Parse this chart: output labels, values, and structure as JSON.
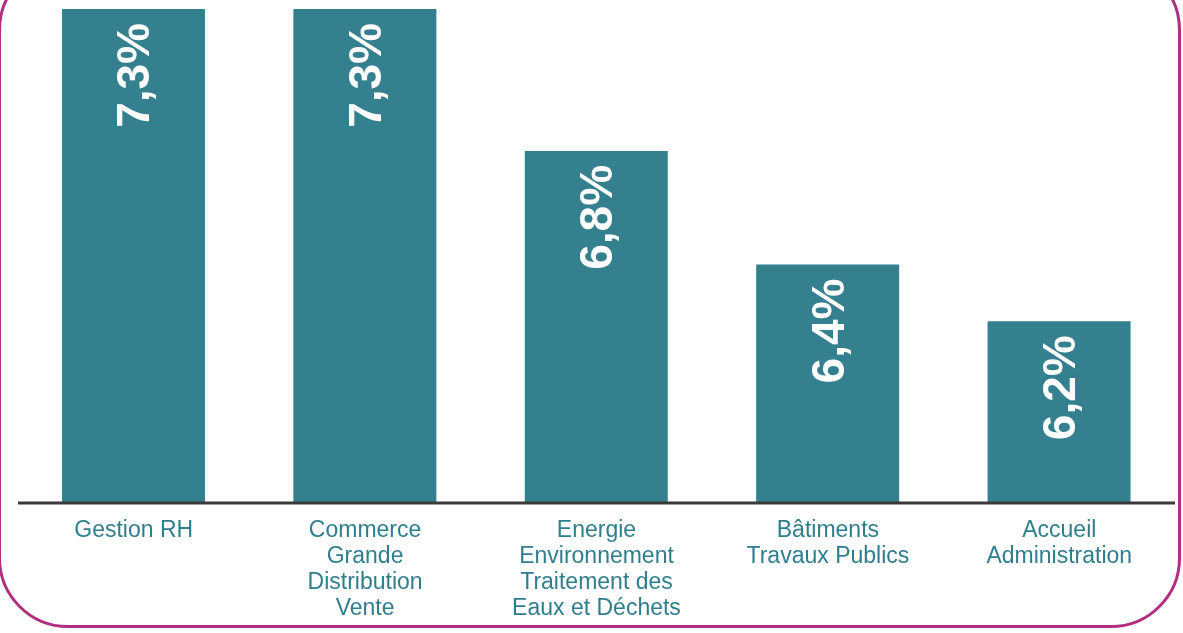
{
  "chart_data": {
    "type": "bar",
    "categories": [
      "Gestion RH",
      "Commerce\nGrande\nDistribution\nVente",
      "Energie\nEnvironnement\nTraitement des\nEaux et Déchets",
      "Bâtiments\nTravaux Publics",
      "Accueil\nAdministration"
    ],
    "values": [
      7.3,
      7.3,
      6.8,
      6.4,
      6.2
    ],
    "value_labels": [
      "7,3%",
      "7,3%",
      "6,8%",
      "6,4%",
      "6,2%"
    ],
    "color": "#35808f",
    "ylim": [
      5.56,
      7.3
    ],
    "tick_labels": "x"
  }
}
